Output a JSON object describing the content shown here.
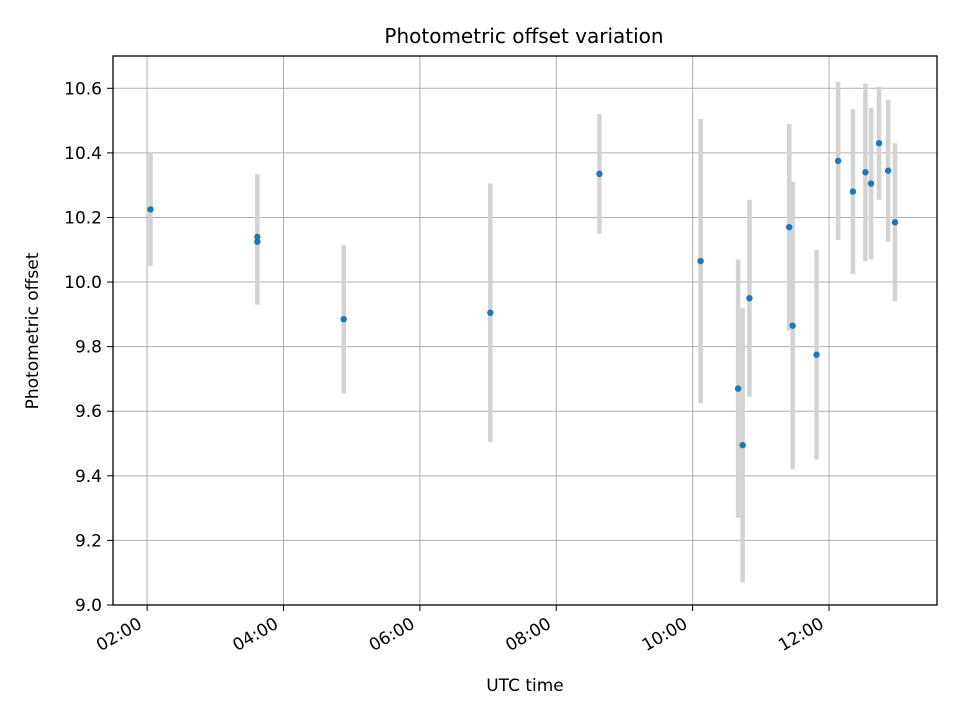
{
  "chart_data": {
    "type": "scatter",
    "title": "Photometric offset variation",
    "xlabel": "UTC time",
    "ylabel": "Photometric offset",
    "x_ticks": [
      "02:00",
      "04:00",
      "06:00",
      "08:00",
      "10:00",
      "12:00"
    ],
    "y_ticks": [
      "9.0",
      "9.2",
      "9.4",
      "9.6",
      "9.8",
      "10.0",
      "10.2",
      "10.4",
      "10.6"
    ],
    "xlim": [
      "01:30",
      "13:35"
    ],
    "ylim": [
      9.0,
      10.7
    ],
    "grid": true,
    "marker_color": "#1f77b4",
    "errorbar_color": "#d3d3d3",
    "series": [
      {
        "x": [
          "02:03",
          "03:37",
          "03:37",
          "04:53",
          "07:02",
          "08:38",
          "10:07",
          "10:40",
          "10:44",
          "10:50",
          "11:25",
          "11:28",
          "11:49",
          "12:08",
          "12:21",
          "12:32",
          "12:37",
          "12:44",
          "12:52",
          "12:58"
        ],
        "y": [
          10.225,
          10.14,
          10.125,
          9.885,
          9.905,
          10.335,
          10.065,
          9.67,
          9.495,
          9.95,
          10.17,
          9.865,
          9.775,
          10.375,
          10.28,
          10.34,
          10.305,
          10.43,
          10.345,
          10.185
        ],
        "yerr": [
          0.175,
          0.195,
          0.195,
          0.23,
          0.4,
          0.185,
          0.44,
          0.4,
          0.425,
          0.305,
          0.32,
          0.445,
          0.325,
          0.245,
          0.255,
          0.275,
          0.235,
          0.175,
          0.22,
          0.245
        ]
      }
    ]
  }
}
